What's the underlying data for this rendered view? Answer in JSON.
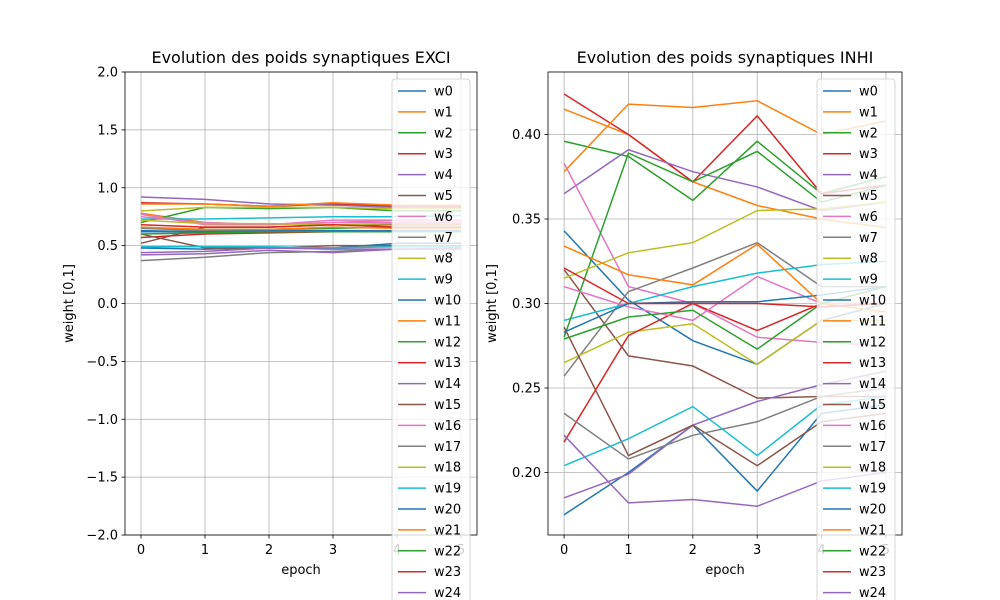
{
  "chart_data": [
    {
      "type": "line",
      "title": "Evolution des poids synaptiques EXCI",
      "xlabel": "epoch",
      "ylabel": "weight [0,1]",
      "x": [
        0,
        1,
        2,
        3,
        4,
        5
      ],
      "xlim": [
        -0.25,
        5.25
      ],
      "ylim": [
        -2,
        2
      ],
      "xticks": [
        0,
        1,
        2,
        3,
        4,
        5
      ],
      "yticks": [
        {
          "value": -2,
          "label": "−2.0"
        },
        {
          "value": -1.5,
          "label": "−1.5"
        },
        {
          "value": -1,
          "label": "−1.0"
        },
        {
          "value": -0.5,
          "label": "−0.5"
        },
        {
          "value": 0,
          "label": "0.0"
        },
        {
          "value": 0.5,
          "label": "0.5"
        },
        {
          "value": 1,
          "label": "1.0"
        },
        {
          "value": 1.5,
          "label": "1.5"
        },
        {
          "value": 2,
          "label": "2.0"
        }
      ],
      "grid": true,
      "legend": "upper right",
      "series": [
        {
          "name": "w0",
          "color": "#1f77b4",
          "values": [
            0.62,
            0.62,
            0.63,
            0.62,
            0.62,
            0.62
          ]
        },
        {
          "name": "w1",
          "color": "#ff7f0e",
          "values": [
            0.78,
            0.7,
            0.68,
            0.7,
            0.72,
            0.72
          ]
        },
        {
          "name": "w2",
          "color": "#2ca02c",
          "values": [
            0.7,
            0.83,
            0.82,
            0.83,
            0.8,
            0.8
          ]
        },
        {
          "name": "w3",
          "color": "#d62728",
          "values": [
            0.87,
            0.86,
            0.84,
            0.86,
            0.84,
            0.84
          ]
        },
        {
          "name": "w4",
          "color": "#9467bd",
          "values": [
            0.92,
            0.9,
            0.86,
            0.85,
            0.83,
            0.83
          ]
        },
        {
          "name": "w5",
          "color": "#8c564b",
          "values": [
            0.52,
            0.66,
            0.66,
            0.68,
            0.68,
            0.68
          ]
        },
        {
          "name": "w6",
          "color": "#e377c2",
          "values": [
            0.77,
            0.68,
            0.68,
            0.7,
            0.7,
            0.7
          ]
        },
        {
          "name": "w7",
          "color": "#7f7f7f",
          "values": [
            0.37,
            0.4,
            0.44,
            0.45,
            0.47,
            0.48
          ]
        },
        {
          "name": "w8",
          "color": "#bcbd22",
          "values": [
            0.8,
            0.83,
            0.83,
            0.83,
            0.82,
            0.82
          ]
        },
        {
          "name": "w9",
          "color": "#17becf",
          "values": [
            0.73,
            0.73,
            0.74,
            0.75,
            0.75,
            0.76
          ]
        },
        {
          "name": "w10",
          "color": "#1f77b4",
          "values": [
            0.48,
            0.47,
            0.48,
            0.48,
            0.52,
            0.52
          ]
        },
        {
          "name": "w11",
          "color": "#ff7f0e",
          "values": [
            0.86,
            0.86,
            0.84,
            0.87,
            0.85,
            0.85
          ]
        },
        {
          "name": "w12",
          "color": "#2ca02c",
          "values": [
            0.65,
            0.64,
            0.64,
            0.65,
            0.66,
            0.66
          ]
        },
        {
          "name": "w13",
          "color": "#d62728",
          "values": [
            0.57,
            0.6,
            0.61,
            0.62,
            0.62,
            0.62
          ]
        },
        {
          "name": "w14",
          "color": "#9467bd",
          "values": [
            0.42,
            0.43,
            0.46,
            0.44,
            0.47,
            0.47
          ]
        },
        {
          "name": "w15",
          "color": "#8c564b",
          "values": [
            0.6,
            0.48,
            0.48,
            0.5,
            0.5,
            0.5
          ]
        },
        {
          "name": "w16",
          "color": "#e377c2",
          "values": [
            0.75,
            0.7,
            0.68,
            0.72,
            0.72,
            0.72
          ]
        },
        {
          "name": "w17",
          "color": "#7f7f7f",
          "values": [
            0.65,
            0.63,
            0.63,
            0.63,
            0.62,
            0.62
          ]
        },
        {
          "name": "w18",
          "color": "#bcbd22",
          "values": [
            0.72,
            0.69,
            0.69,
            0.68,
            0.69,
            0.69
          ]
        },
        {
          "name": "w19",
          "color": "#17becf",
          "values": [
            0.49,
            0.49,
            0.49,
            0.48,
            0.49,
            0.49
          ]
        },
        {
          "name": "w20",
          "color": "#1f77b4",
          "values": [
            0.63,
            0.62,
            0.63,
            0.63,
            0.63,
            0.63
          ]
        },
        {
          "name": "w21",
          "color": "#ff7f0e",
          "values": [
            0.66,
            0.64,
            0.64,
            0.66,
            0.65,
            0.65
          ]
        },
        {
          "name": "w22",
          "color": "#2ca02c",
          "values": [
            0.6,
            0.61,
            0.62,
            0.62,
            0.62,
            0.62
          ]
        },
        {
          "name": "w23",
          "color": "#d62728",
          "values": [
            0.68,
            0.66,
            0.66,
            0.68,
            0.66,
            0.66
          ]
        },
        {
          "name": "w24",
          "color": "#9467bd",
          "values": [
            0.44,
            0.45,
            0.48,
            0.47,
            0.47,
            0.47
          ]
        }
      ]
    },
    {
      "type": "line",
      "title": "Evolution des poids synaptiques INHI",
      "xlabel": "epoch",
      "ylabel": "weight [0,1]",
      "x": [
        0,
        1,
        2,
        3,
        4,
        5
      ],
      "xlim": [
        -0.25,
        5.25
      ],
      "ylim": [
        0.163,
        0.437
      ],
      "xticks": [
        0,
        1,
        2,
        3,
        4,
        5
      ],
      "yticks": [
        {
          "value": 0.2,
          "label": "0.20"
        },
        {
          "value": 0.25,
          "label": "0.25"
        },
        {
          "value": 0.3,
          "label": "0.30"
        },
        {
          "value": 0.35,
          "label": "0.35"
        },
        {
          "value": 0.4,
          "label": "0.40"
        }
      ],
      "grid": true,
      "legend": "upper right",
      "series": [
        {
          "name": "w0",
          "color": "#1f77b4",
          "values": [
            0.343,
            0.302,
            0.278,
            0.264,
            0.29,
            0.3
          ]
        },
        {
          "name": "w1",
          "color": "#ff7f0e",
          "values": [
            0.415,
            0.4,
            0.372,
            0.358,
            0.35,
            0.345
          ]
        },
        {
          "name": "w2",
          "color": "#2ca02c",
          "values": [
            0.396,
            0.387,
            0.361,
            0.396,
            0.365,
            0.375
          ]
        },
        {
          "name": "w3",
          "color": "#d62728",
          "values": [
            0.424,
            0.4,
            0.372,
            0.411,
            0.365,
            0.37
          ]
        },
        {
          "name": "w4",
          "color": "#9467bd",
          "values": [
            0.365,
            0.391,
            0.378,
            0.369,
            0.355,
            0.36
          ]
        },
        {
          "name": "w5",
          "color": "#8c564b",
          "values": [
            0.32,
            0.269,
            0.263,
            0.244,
            0.245,
            0.245
          ]
        },
        {
          "name": "w6",
          "color": "#e377c2",
          "values": [
            0.383,
            0.31,
            0.3,
            0.28,
            0.277,
            0.275
          ]
        },
        {
          "name": "w7",
          "color": "#7f7f7f",
          "values": [
            0.257,
            0.307,
            0.321,
            0.336,
            0.31,
            0.31
          ]
        },
        {
          "name": "w8",
          "color": "#bcbd22",
          "values": [
            0.265,
            0.283,
            0.288,
            0.264,
            0.29,
            0.29
          ]
        },
        {
          "name": "w9",
          "color": "#17becf",
          "values": [
            0.29,
            0.3,
            0.31,
            0.318,
            0.323,
            0.325
          ]
        },
        {
          "name": "w10",
          "color": "#1f77b4",
          "values": [
            0.175,
            0.2,
            0.228,
            0.189,
            0.235,
            0.24
          ]
        },
        {
          "name": "w11",
          "color": "#ff7f0e",
          "values": [
            0.378,
            0.418,
            0.416,
            0.42,
            0.4,
            0.408
          ]
        },
        {
          "name": "w12",
          "color": "#2ca02c",
          "values": [
            0.28,
            0.389,
            0.372,
            0.39,
            0.36,
            0.37
          ]
        },
        {
          "name": "w13",
          "color": "#d62728",
          "values": [
            0.218,
            0.281,
            0.3,
            0.284,
            0.3,
            0.3
          ]
        },
        {
          "name": "w14",
          "color": "#9467bd",
          "values": [
            0.185,
            0.199,
            0.228,
            0.242,
            0.252,
            0.26
          ]
        },
        {
          "name": "w15",
          "color": "#8c564b",
          "values": [
            0.286,
            0.21,
            0.228,
            0.204,
            0.23,
            0.235
          ]
        },
        {
          "name": "w16",
          "color": "#e377c2",
          "values": [
            0.31,
            0.298,
            0.29,
            0.316,
            0.3,
            0.3
          ]
        },
        {
          "name": "w17",
          "color": "#7f7f7f",
          "values": [
            0.235,
            0.208,
            0.222,
            0.23,
            0.245,
            0.25
          ]
        },
        {
          "name": "w18",
          "color": "#bcbd22",
          "values": [
            0.315,
            0.33,
            0.336,
            0.355,
            0.356,
            0.36
          ]
        },
        {
          "name": "w19",
          "color": "#17becf",
          "values": [
            0.204,
            0.22,
            0.239,
            0.21,
            0.24,
            0.245
          ]
        },
        {
          "name": "w20",
          "color": "#1f77b4",
          "values": [
            0.283,
            0.3,
            0.301,
            0.301,
            0.305,
            0.31
          ]
        },
        {
          "name": "w21",
          "color": "#ff7f0e",
          "values": [
            0.334,
            0.317,
            0.311,
            0.335,
            0.3,
            0.295
          ]
        },
        {
          "name": "w22",
          "color": "#2ca02c",
          "values": [
            0.279,
            0.292,
            0.296,
            0.273,
            0.3,
            0.31
          ]
        },
        {
          "name": "w23",
          "color": "#d62728",
          "values": [
            0.321,
            0.3,
            0.3,
            0.3,
            0.298,
            0.3
          ]
        },
        {
          "name": "w24",
          "color": "#9467bd",
          "values": [
            0.222,
            0.182,
            0.184,
            0.18,
            0.195,
            0.2
          ]
        }
      ]
    }
  ]
}
